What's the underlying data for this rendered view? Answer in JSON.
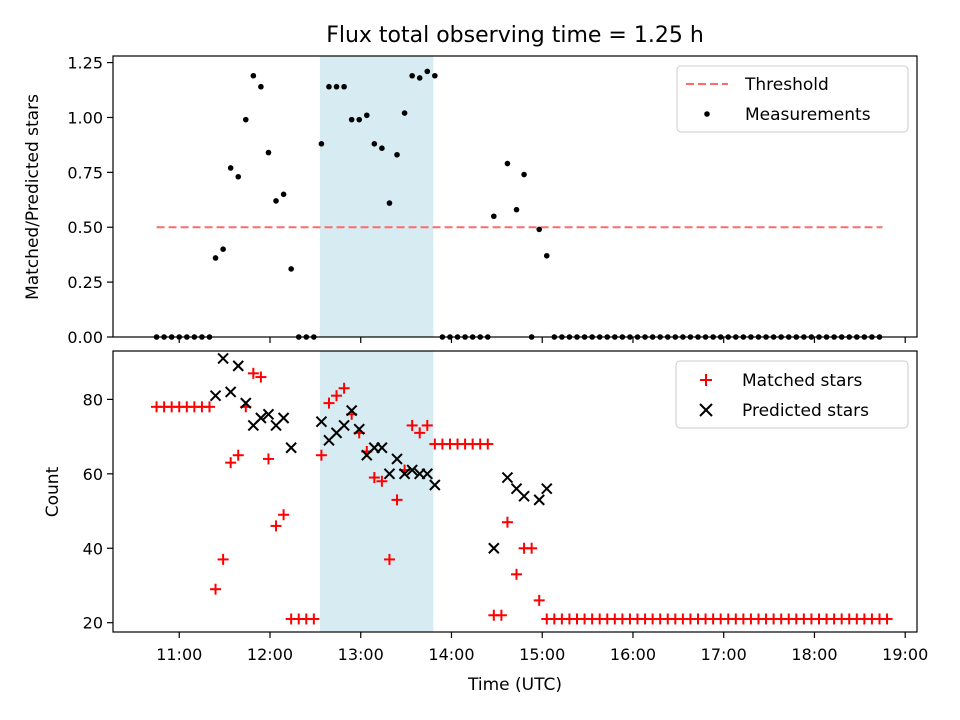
{
  "chart_data": {
    "title": "Flux total observing time = 1.25 h",
    "xlabel": "Time (UTC)",
    "x_ticks": [
      "11:00",
      "12:00",
      "13:00",
      "14:00",
      "15:00",
      "16:00",
      "17:00",
      "18:00",
      "19:00"
    ],
    "x_range_hours": [
      10.27,
      19.13
    ],
    "shaded_region": {
      "start": "12:33",
      "end": "13:48",
      "color": "#add8e6"
    },
    "charts": [
      {
        "type": "scatter",
        "ylabel": "Matched/Predicted stars",
        "ylim": [
          0,
          1.28
        ],
        "y_ticks": [
          "0.00",
          "0.25",
          "0.50",
          "0.75",
          "1.00",
          "1.25"
        ],
        "legend": {
          "placement": "top-right",
          "entries": [
            "Threshold",
            "Measurements"
          ]
        },
        "threshold": {
          "name": "Threshold",
          "value": 0.5,
          "x_start": "10:45",
          "x_end": "18:45",
          "color": "#ff6b6b"
        },
        "series": [
          {
            "name": "Measurements",
            "color": "#000000",
            "marker": "dot",
            "points": [
              [
                "10:45",
                0
              ],
              [
                "10:50",
                0
              ],
              [
                "10:55",
                0
              ],
              [
                "11:00",
                0
              ],
              [
                "11:05",
                0
              ],
              [
                "11:10",
                0
              ],
              [
                "11:15",
                0
              ],
              [
                "11:20",
                0
              ],
              [
                "11:24",
                0.36
              ],
              [
                "11:29",
                0.4
              ],
              [
                "11:34",
                0.77
              ],
              [
                "11:39",
                0.73
              ],
              [
                "11:44",
                0.99
              ],
              [
                "11:49",
                1.19
              ],
              [
                "11:54",
                1.14
              ],
              [
                "11:59",
                0.84
              ],
              [
                "12:04",
                0.62
              ],
              [
                "12:09",
                0.65
              ],
              [
                "12:14",
                0.31
              ],
              [
                "12:19",
                0
              ],
              [
                "12:24",
                0
              ],
              [
                "12:29",
                0
              ],
              [
                "12:34",
                0.88
              ],
              [
                "12:39",
                1.14
              ],
              [
                "12:44",
                1.14
              ],
              [
                "12:49",
                1.14
              ],
              [
                "12:54",
                0.99
              ],
              [
                "12:59",
                0.99
              ],
              [
                "13:04",
                1.01
              ],
              [
                "13:09",
                0.88
              ],
              [
                "13:14",
                0.86
              ],
              [
                "13:19",
                0.61
              ],
              [
                "13:24",
                0.83
              ],
              [
                "13:29",
                1.02
              ],
              [
                "13:34",
                1.19
              ],
              [
                "13:39",
                1.18
              ],
              [
                "13:44",
                1.21
              ],
              [
                "13:49",
                1.19
              ],
              [
                "13:54",
                0
              ],
              [
                "13:59",
                0
              ],
              [
                "14:04",
                0
              ],
              [
                "14:09",
                0
              ],
              [
                "14:14",
                0
              ],
              [
                "14:19",
                0
              ],
              [
                "14:24",
                0
              ],
              [
                "14:28",
                0.55
              ],
              [
                "14:37",
                0.79
              ],
              [
                "14:43",
                0.58
              ],
              [
                "14:48",
                0.74
              ],
              [
                "14:53",
                0
              ],
              [
                "14:58",
                0.49
              ],
              [
                "15:03",
                0.37
              ],
              [
                "15:08",
                0
              ],
              [
                "15:13",
                0
              ],
              [
                "15:18",
                0
              ],
              [
                "15:23",
                0
              ],
              [
                "15:28",
                0
              ],
              [
                "15:33",
                0
              ],
              [
                "15:38",
                0
              ],
              [
                "15:43",
                0
              ],
              [
                "15:48",
                0
              ],
              [
                "15:53",
                0
              ],
              [
                "15:58",
                0
              ],
              [
                "16:03",
                0
              ],
              [
                "16:08",
                0
              ],
              [
                "16:13",
                0
              ],
              [
                "16:18",
                0
              ],
              [
                "16:23",
                0
              ],
              [
                "16:28",
                0
              ],
              [
                "16:33",
                0
              ],
              [
                "16:38",
                0
              ],
              [
                "16:43",
                0
              ],
              [
                "16:48",
                0
              ],
              [
                "16:53",
                0
              ],
              [
                "16:58",
                0
              ],
              [
                "17:03",
                0
              ],
              [
                "17:08",
                0
              ],
              [
                "17:13",
                0
              ],
              [
                "17:18",
                0
              ],
              [
                "17:23",
                0
              ],
              [
                "17:28",
                0
              ],
              [
                "17:33",
                0
              ],
              [
                "17:38",
                0
              ],
              [
                "17:43",
                0
              ],
              [
                "17:48",
                0
              ],
              [
                "17:53",
                0
              ],
              [
                "17:58",
                0
              ],
              [
                "18:03",
                0
              ],
              [
                "18:08",
                0
              ],
              [
                "18:13",
                0
              ],
              [
                "18:18",
                0
              ],
              [
                "18:23",
                0
              ],
              [
                "18:28",
                0
              ],
              [
                "18:33",
                0
              ],
              [
                "18:38",
                0
              ],
              [
                "18:43",
                0
              ]
            ]
          }
        ]
      },
      {
        "type": "scatter",
        "ylabel": "Count",
        "ylim": [
          17.5,
          93
        ],
        "y_ticks": [
          "20",
          "40",
          "60",
          "80"
        ],
        "legend": {
          "placement": "top-right",
          "entries": [
            "Matched stars",
            "Predicted stars"
          ]
        },
        "series": [
          {
            "name": "Matched stars",
            "color": "#ff0000",
            "marker": "plus",
            "points": [
              [
                "10:45",
                78
              ],
              [
                "10:50",
                78
              ],
              [
                "10:55",
                78
              ],
              [
                "11:00",
                78
              ],
              [
                "11:05",
                78
              ],
              [
                "11:10",
                78
              ],
              [
                "11:15",
                78
              ],
              [
                "11:20",
                78
              ],
              [
                "11:24",
                29
              ],
              [
                "11:29",
                37
              ],
              [
                "11:34",
                63
              ],
              [
                "11:39",
                65
              ],
              [
                "11:44",
                78
              ],
              [
                "11:49",
                87
              ],
              [
                "11:54",
                86
              ],
              [
                "11:59",
                64
              ],
              [
                "12:04",
                46
              ],
              [
                "12:09",
                49
              ],
              [
                "12:14",
                21
              ],
              [
                "12:19",
                21
              ],
              [
                "12:24",
                21
              ],
              [
                "12:29",
                21
              ],
              [
                "12:34",
                65
              ],
              [
                "12:39",
                79
              ],
              [
                "12:44",
                81
              ],
              [
                "12:49",
                83
              ],
              [
                "12:54",
                76
              ],
              [
                "12:59",
                71
              ],
              [
                "13:04",
                66
              ],
              [
                "13:09",
                59
              ],
              [
                "13:14",
                58
              ],
              [
                "13:19",
                37
              ],
              [
                "13:24",
                53
              ],
              [
                "13:29",
                61
              ],
              [
                "13:34",
                73
              ],
              [
                "13:39",
                71
              ],
              [
                "13:44",
                73
              ],
              [
                "13:49",
                68
              ],
              [
                "13:54",
                68
              ],
              [
                "13:59",
                68
              ],
              [
                "14:04",
                68
              ],
              [
                "14:09",
                68
              ],
              [
                "14:14",
                68
              ],
              [
                "14:19",
                68
              ],
              [
                "14:24",
                68
              ],
              [
                "14:28",
                22
              ],
              [
                "14:33",
                22
              ],
              [
                "14:37",
                47
              ],
              [
                "14:43",
                33
              ],
              [
                "14:48",
                40
              ],
              [
                "14:53",
                40
              ],
              [
                "14:58",
                26
              ],
              [
                "15:03",
                21
              ],
              [
                "15:08",
                21
              ],
              [
                "15:13",
                21
              ],
              [
                "15:18",
                21
              ],
              [
                "15:23",
                21
              ],
              [
                "15:28",
                21
              ],
              [
                "15:33",
                21
              ],
              [
                "15:38",
                21
              ],
              [
                "15:43",
                21
              ],
              [
                "15:48",
                21
              ],
              [
                "15:53",
                21
              ],
              [
                "15:58",
                21
              ],
              [
                "16:03",
                21
              ],
              [
                "16:08",
                21
              ],
              [
                "16:13",
                21
              ],
              [
                "16:18",
                21
              ],
              [
                "16:23",
                21
              ],
              [
                "16:28",
                21
              ],
              [
                "16:33",
                21
              ],
              [
                "16:38",
                21
              ],
              [
                "16:43",
                21
              ],
              [
                "16:48",
                21
              ],
              [
                "16:53",
                21
              ],
              [
                "16:58",
                21
              ],
              [
                "17:03",
                21
              ],
              [
                "17:08",
                21
              ],
              [
                "17:13",
                21
              ],
              [
                "17:18",
                21
              ],
              [
                "17:23",
                21
              ],
              [
                "17:28",
                21
              ],
              [
                "17:33",
                21
              ],
              [
                "17:38",
                21
              ],
              [
                "17:43",
                21
              ],
              [
                "17:48",
                21
              ],
              [
                "17:53",
                21
              ],
              [
                "17:58",
                21
              ],
              [
                "18:03",
                21
              ],
              [
                "18:08",
                21
              ],
              [
                "18:13",
                21
              ],
              [
                "18:18",
                21
              ],
              [
                "18:23",
                21
              ],
              [
                "18:28",
                21
              ],
              [
                "18:33",
                21
              ],
              [
                "18:38",
                21
              ],
              [
                "18:43",
                21
              ],
              [
                "18:48",
                21
              ]
            ]
          },
          {
            "name": "Predicted stars",
            "color": "#000000",
            "marker": "x",
            "points": [
              [
                "11:24",
                81
              ],
              [
                "11:29",
                91
              ],
              [
                "11:34",
                82
              ],
              [
                "11:39",
                89
              ],
              [
                "11:44",
                79
              ],
              [
                "11:49",
                73
              ],
              [
                "11:54",
                75
              ],
              [
                "11:59",
                76
              ],
              [
                "12:04",
                73
              ],
              [
                "12:09",
                75
              ],
              [
                "12:14",
                67
              ],
              [
                "12:34",
                74
              ],
              [
                "12:39",
                69
              ],
              [
                "12:44",
                71
              ],
              [
                "12:49",
                73
              ],
              [
                "12:54",
                77
              ],
              [
                "12:59",
                72
              ],
              [
                "13:04",
                65
              ],
              [
                "13:09",
                67
              ],
              [
                "13:14",
                67
              ],
              [
                "13:19",
                60
              ],
              [
                "13:24",
                64
              ],
              [
                "13:29",
                60
              ],
              [
                "13:34",
                61
              ],
              [
                "13:39",
                60
              ],
              [
                "13:44",
                60
              ],
              [
                "13:49",
                57
              ],
              [
                "14:28",
                40
              ],
              [
                "14:37",
                59
              ],
              [
                "14:43",
                56
              ],
              [
                "14:48",
                54
              ],
              [
                "14:58",
                53
              ],
              [
                "15:03",
                56
              ]
            ]
          }
        ]
      }
    ]
  }
}
